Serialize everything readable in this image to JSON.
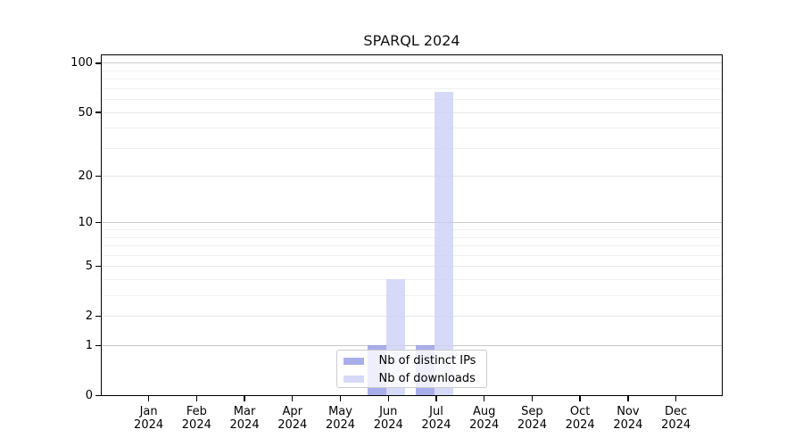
{
  "title": "SPARQL 2024",
  "chart_data": {
    "type": "bar",
    "title": "SPARQL 2024",
    "categories": [
      "Jan",
      "Feb",
      "Mar",
      "Apr",
      "May",
      "Jun",
      "Jul",
      "Aug",
      "Sep",
      "Oct",
      "Nov",
      "Dec"
    ],
    "year_label": "2024",
    "series": [
      {
        "name": "Nb of distinct IPs",
        "color": "#a8aeea",
        "fill": "rgba(146,154,229,0.8)",
        "values": [
          0,
          0,
          0,
          0,
          0,
          1,
          1,
          0,
          0,
          0,
          0,
          0
        ]
      },
      {
        "name": "Nb of downloads",
        "color": "#d7daf7",
        "fill": "rgba(204,208,245,0.8)",
        "values": [
          0,
          0,
          0,
          0,
          0,
          4,
          67,
          0,
          0,
          0,
          0,
          0
        ]
      }
    ],
    "y_axis": {
      "scale": "log1p",
      "ticks": [
        0,
        1,
        2,
        5,
        10,
        20,
        50,
        100
      ],
      "minor_ticks": [
        3,
        4,
        6,
        7,
        8,
        9,
        30,
        40,
        60,
        70,
        80,
        90
      ],
      "range": [
        0,
        112
      ]
    },
    "grid": true,
    "legend_position": "lower-center-inside",
    "colors": {
      "major_grid": "#c9c9c9",
      "tick_grid": "#e8e8e8",
      "minor_grid": "#f1f1f1",
      "spine": "#000000",
      "legend_border": "#cccccc"
    }
  }
}
